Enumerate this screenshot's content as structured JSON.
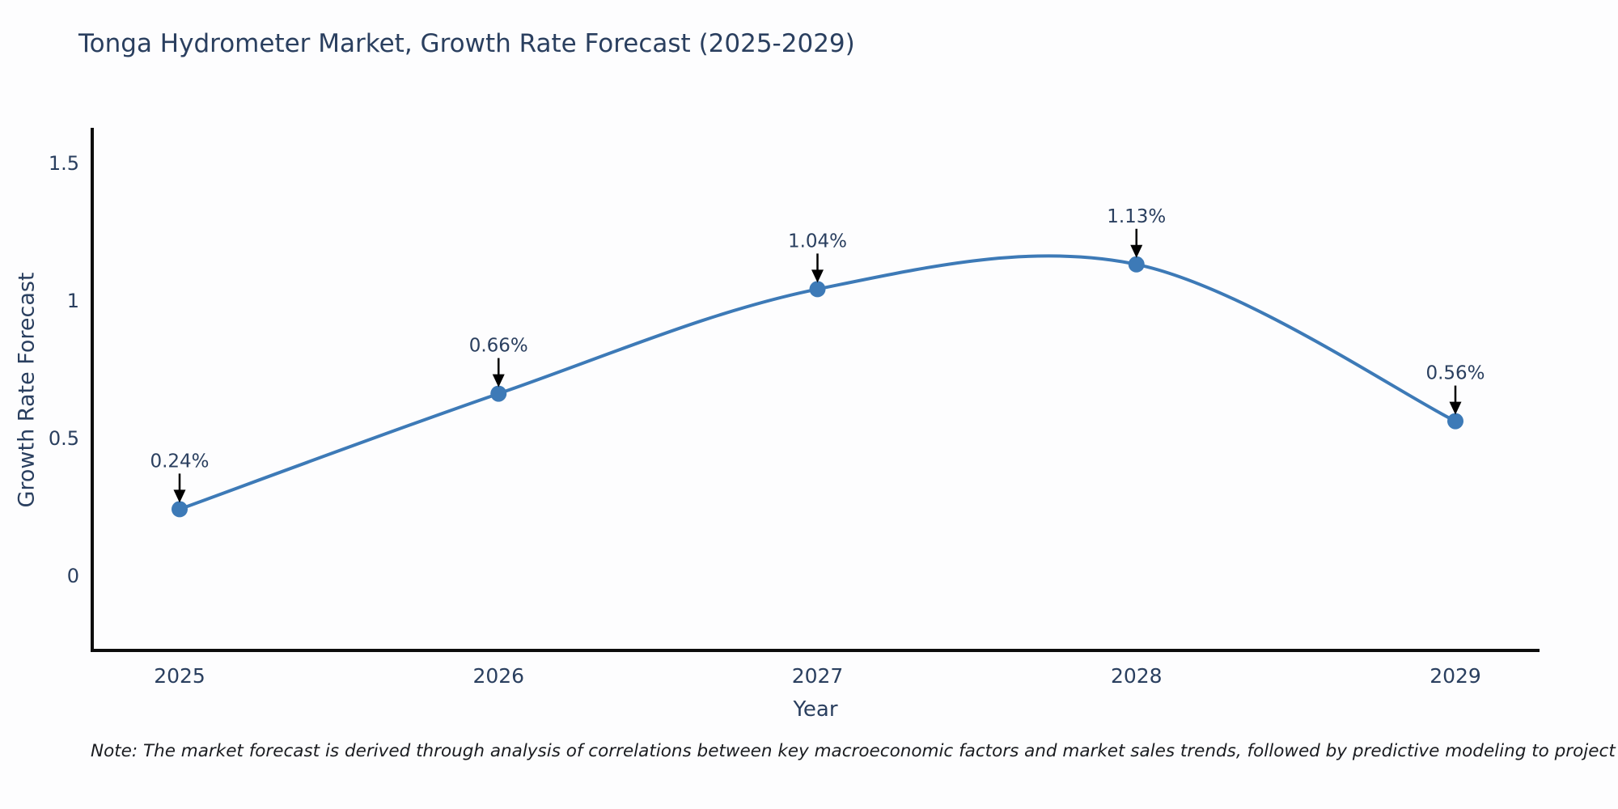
{
  "page": {
    "title": "Tonga Hydrometer Market, Growth Rate Forecast (2025-2029)",
    "note": "Note: The market forecast is derived through analysis of correlations between key macroeconomic factors and market sales trends, followed by predictive modeling to project future sales"
  },
  "chart_data": {
    "type": "line",
    "title": "Tonga Hydrometer Market, Growth Rate Forecast (2025-2029)",
    "x": [
      2025,
      2026,
      2027,
      2028,
      2029
    ],
    "y": [
      0.24,
      0.66,
      1.04,
      1.13,
      0.56
    ],
    "series": [
      {
        "name": "Growth Rate Forecast",
        "values": [
          0.24,
          0.66,
          1.04,
          1.13,
          0.56
        ]
      }
    ],
    "point_labels": [
      "0.24%",
      "0.66%",
      "1.04%",
      "1.13%",
      "0.56%"
    ],
    "xtick_labels": [
      "2025",
      "2026",
      "2027",
      "2028",
      "2029"
    ],
    "ytick_values": [
      0,
      0.5,
      1,
      1.5
    ],
    "ytick_labels": [
      "0",
      "0.5",
      "1",
      "1.5"
    ],
    "xlabel": "Year",
    "ylabel": "Growth Rate Forecast",
    "ylim": [
      -0.27,
      1.63
    ],
    "xlim_years": [
      2024.73,
      2029.26
    ],
    "line_shape": "spline",
    "grid": false,
    "legend": "none",
    "colors": {
      "line": "#3d7ab7",
      "marker": "#3d7ab7",
      "text": "#2a3f5f",
      "axis": "#0d0d0d",
      "annotation_arrow": "#000000",
      "background": "#fdfdfe"
    }
  }
}
